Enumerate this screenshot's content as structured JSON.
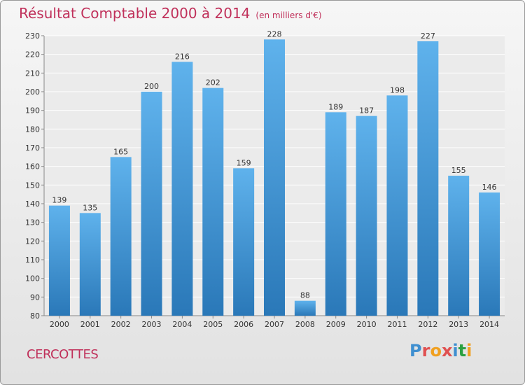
{
  "header": {
    "title": "Résultat Comptable 2000 à 2014",
    "unit": "(en milliers d'€)"
  },
  "footer": {
    "town": "CERCOTTES",
    "logo": "Proxiti"
  },
  "colors": {
    "title": "#c0305a",
    "bar_top": "#5fb2ec",
    "bar_bottom": "#2a78b8",
    "logo_letters": [
      "#3f8fd0",
      "#e05050",
      "#f0a020",
      "#e05050",
      "#3f8fd0",
      "#2aa040",
      "#f0a020"
    ]
  },
  "chart_data": {
    "type": "bar",
    "title": "Résultat Comptable 2000 à 2014",
    "ylabel": "",
    "xlabel": "",
    "categories": [
      "2000",
      "2001",
      "2002",
      "2003",
      "2004",
      "2005",
      "2006",
      "2007",
      "2008",
      "2009",
      "2010",
      "2011",
      "2012",
      "2013",
      "2014"
    ],
    "values": [
      139,
      135,
      165,
      200,
      216,
      202,
      159,
      228,
      88,
      189,
      187,
      198,
      227,
      155,
      146
    ],
    "ylim": [
      80,
      230
    ],
    "yticks": [
      80,
      90,
      100,
      110,
      120,
      130,
      140,
      150,
      160,
      170,
      180,
      190,
      200,
      210,
      220,
      230
    ],
    "grid": true,
    "legend": "none"
  }
}
